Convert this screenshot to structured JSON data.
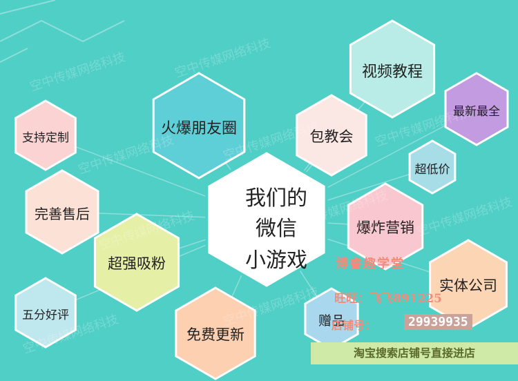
{
  "watermark": "空中传媒网络科技",
  "center": {
    "line1": "我们的",
    "line2": "微信",
    "line3": "小游戏"
  },
  "hexagons": [
    {
      "label": "视频教程",
      "fill": "#b9ece6"
    },
    {
      "label": "最新最全",
      "fill": "#c39be0"
    },
    {
      "label": "包教会",
      "fill": "#fbe7e3"
    },
    {
      "label": "火爆朋友圈",
      "fill": "#5ecfd6"
    },
    {
      "label": "支持定制",
      "fill": "#fbd3d3"
    },
    {
      "label": "超低价",
      "fill": "#a7dde6"
    },
    {
      "label": "完善售后",
      "fill": "#fbe1d6"
    },
    {
      "label": "爆炸营销",
      "fill": "#f9c7cf"
    },
    {
      "label": "超强吸粉",
      "fill": "#e5f0a6"
    },
    {
      "label": "实体公司",
      "fill": "#fcd5b4"
    },
    {
      "label": "五分好评",
      "fill": "#bfe7ee"
    },
    {
      "label": "免费更新",
      "fill": "#fcd0b0"
    },
    {
      "label": "赠品",
      "fill": "#a9d7ee"
    }
  ],
  "promo": {
    "title": "博睿趣学堂",
    "wangwang": "旺旺：飞飞891225",
    "shop_label": "店铺号：",
    "shop_number": "29939935",
    "bar": "淘宝搜索店铺号直接进店"
  },
  "colors": {
    "background": "#4fcfc6",
    "line": "#8fdedb",
    "hex_stroke": "#ffffff",
    "text": "#222222"
  }
}
